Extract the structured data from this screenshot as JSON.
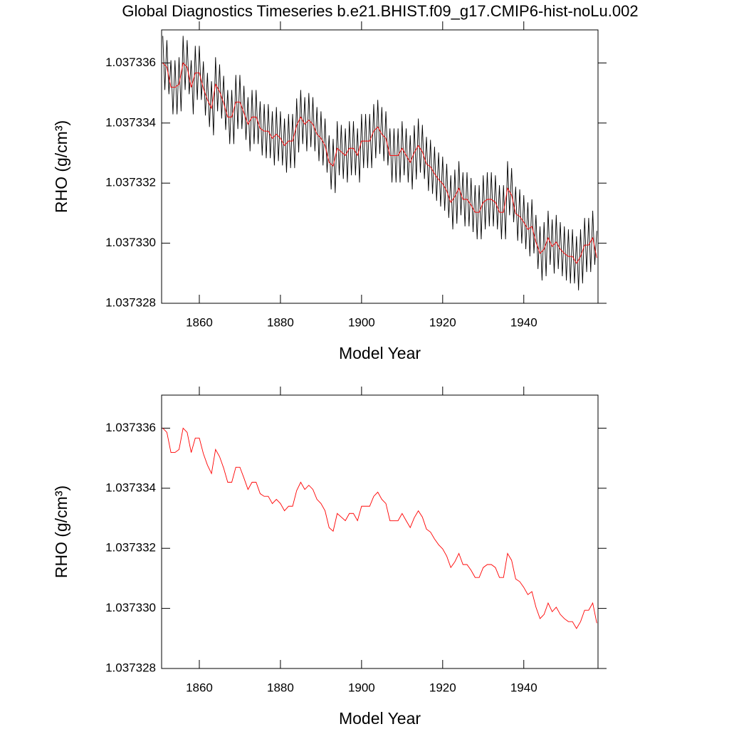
{
  "chart_data": [
    {
      "type": "line",
      "title": "Global Diagnostics Timeseries b.e21.BHIST.f09_g17.CMIP6-hist-noLu.002",
      "xlabel": "Model Year",
      "ylabel": "RHO (g/cm³)",
      "xlim": [
        1850.7,
        1958.3
      ],
      "xticks": [
        1860,
        1880,
        1900,
        1920,
        1940
      ],
      "ylim": [
        1.037328,
        1.0373371
      ],
      "yticks": [
        1.037328,
        {
          "value": 1.03733,
          "label": "1.037330"
        },
        1.037332,
        1.037334,
        1.037336
      ],
      "series": [
        {
          "color": "#000000",
          "x": [
            1851,
            1851.5,
            1852,
            1852.5,
            1853,
            1853.5,
            1854,
            1854.5,
            1855,
            1855.5,
            1856,
            1856.5,
            1857,
            1857.5,
            1858,
            1858.5,
            1859,
            1859.5,
            1860,
            1860.5,
            1861,
            1861.5,
            1862,
            1862.5,
            1863,
            1863.5,
            1864,
            1864.5,
            1865,
            1865.5,
            1866,
            1866.5,
            1867,
            1867.5,
            1868,
            1868.5,
            1869,
            1869.5,
            1870,
            1870.5,
            1871,
            1871.5,
            1872,
            1872.5,
            1873,
            1873.5,
            1874,
            1874.5,
            1875,
            1875.5,
            1876,
            1876.5,
            1877,
            1877.5,
            1878,
            1878.5,
            1879,
            1879.5,
            1880,
            1880.5,
            1881,
            1881.5,
            1882,
            1882.5,
            1883,
            1883.5,
            1884,
            1884.5,
            1885,
            1885.5,
            1886,
            1886.5,
            1887,
            1887.5,
            1888,
            1888.5,
            1889,
            1889.5,
            1890,
            1890.5,
            1891,
            1891.5,
            1892,
            1892.5,
            1893,
            1893.5,
            1894,
            1894.5,
            1895,
            1895.5,
            1896,
            1896.5,
            1897,
            1897.5,
            1898,
            1898.5,
            1899,
            1899.5,
            1900,
            1900.5,
            1901,
            1901.5,
            1902,
            1902.5,
            1903,
            1903.5,
            1904,
            1904.5,
            1905,
            1905.5,
            1906,
            1906.5,
            1907,
            1907.5,
            1908,
            1908.5,
            1909,
            1909.5,
            1910,
            1910.5,
            1911,
            1911.5,
            1912,
            1912.5,
            1913,
            1913.5,
            1914,
            1914.5,
            1915,
            1915.5,
            1916,
            1916.5,
            1917,
            1917.5,
            1918,
            1918.5,
            1919,
            1919.5,
            1920,
            1920.5,
            1921,
            1921.5,
            1922,
            1922.5,
            1923,
            1923.5,
            1924,
            1924.5,
            1925,
            1925.5,
            1926,
            1926.5,
            1927,
            1927.5,
            1928,
            1928.5,
            1929,
            1929.5,
            1930,
            1930.5,
            1931,
            1931.5,
            1932,
            1932.5,
            1933,
            1933.5,
            1934,
            1934.5,
            1935,
            1935.5,
            1936,
            1936.5,
            1937,
            1937.5,
            1938,
            1938.5,
            1939,
            1939.5,
            1940,
            1940.5,
            1941,
            1941.5,
            1942,
            1942.5,
            1943,
            1943.5,
            1944,
            1944.5,
            1945,
            1945.5,
            1946,
            1946.5,
            1947,
            1947.5,
            1948,
            1948.5,
            1949,
            1949.5,
            1950,
            1950.5,
            1951,
            1951.5,
            1952,
            1952.5,
            1953,
            1953.5,
            1954,
            1954.5,
            1955,
            1955.5,
            1956,
            1956.5,
            1957,
            1957.5,
            1958
          ],
          "values": [
            1.0373369,
            1.0373351,
            1.03733676,
            1.03733496,
            1.03733609,
            1.03733429,
            1.03733609,
            1.03733429,
            1.03733619,
            1.03733439,
            1.0373369,
            1.0373351,
            1.03733676,
            1.03733496,
            1.03733609,
            1.03733429,
            1.03733657,
            1.03733477,
            1.03733657,
            1.03733477,
            1.03733605,
            1.03733425,
            1.03733567,
            1.03733387,
            1.03733539,
            1.03733359,
            1.03733619,
            1.03733439,
            1.03733595,
            1.03733415,
            1.03733557,
            1.03733377,
            1.0373351,
            1.0373333,
            1.0373351,
            1.0373333,
            1.0373356,
            1.0373338,
            1.0373356,
            1.0373338,
            1.03733524,
            1.03733344,
            1.03733486,
            1.03733306,
            1.0373351,
            1.0373333,
            1.0373351,
            1.0373333,
            1.03733472,
            1.03733292,
            1.03733463,
            1.03733283,
            1.03733463,
            1.03733283,
            1.03733439,
            1.03733259,
            1.03733453,
            1.03733273,
            1.03733439,
            1.03733259,
            1.03733415,
            1.03733235,
            1.0373343,
            1.0373325,
            1.0373343,
            1.0373325,
            1.03733482,
            1.03733302,
            1.0373351,
            1.0373333,
            1.03733486,
            1.03733306,
            1.037335,
            1.0373332,
            1.03733486,
            1.03733306,
            1.03733453,
            1.03733273,
            1.03733439,
            1.03733259,
            1.03733415,
            1.03733235,
            1.03733359,
            1.03733179,
            1.03733347,
            1.03733167,
            1.03733406,
            1.03733226,
            1.03733394,
            1.03733214,
            1.03733382,
            1.03733202,
            1.03733406,
            1.03733226,
            1.03733406,
            1.03733226,
            1.03733382,
            1.03733202,
            1.0373343,
            1.0373325,
            1.0373343,
            1.0373325,
            1.0373343,
            1.0373325,
            1.03733463,
            1.03733283,
            1.03733477,
            1.03733297,
            1.03733453,
            1.03733273,
            1.03733439,
            1.03733259,
            1.03733382,
            1.03733202,
            1.03733382,
            1.03733202,
            1.03733382,
            1.03733202,
            1.03733406,
            1.03733226,
            1.03733382,
            1.03733202,
            1.03733359,
            1.03733179,
            1.03733392,
            1.03733212,
            1.03733415,
            1.03733235,
            1.03733394,
            1.03733214,
            1.03733354,
            1.03733174,
            1.03733344,
            1.03733164,
            1.03733321,
            1.03733141,
            1.03733302,
            1.03733122,
            1.03733288,
            1.03733108,
            1.03733264,
            1.03733084,
            1.03733226,
            1.03733046,
            1.03733245,
            1.03733065,
            1.03733273,
            1.03733093,
            1.03733236,
            1.03733056,
            1.03733236,
            1.03733056,
            1.03733217,
            1.03733037,
            1.03733193,
            1.03733013,
            1.03733193,
            1.03733013,
            1.03733226,
            1.03733046,
            1.03733236,
            1.03733056,
            1.03733236,
            1.03733056,
            1.03733226,
            1.03733046,
            1.03733193,
            1.03733013,
            1.03733193,
            1.03733013,
            1.03733273,
            1.03733093,
            1.0373325,
            1.0373307,
            1.03733188,
            1.03733008,
            1.03733179,
            1.03732999,
            1.0373316,
            1.0373298,
            1.03733136,
            1.03732956,
            1.03733146,
            1.03732966,
            1.03733094,
            1.03732914,
            1.03733056,
            1.03732876,
            1.0373307,
            1.0373289,
            1.03733108,
            1.03732928,
            1.03733079,
            1.03732899,
            1.03733094,
            1.03732914,
            1.0373307,
            1.0373289,
            1.03733056,
            1.03732876,
            1.03733046,
            1.03732866,
            1.03733046,
            1.03732866,
            1.03733023,
            1.03732843,
            1.03733046,
            1.03732866,
            1.03733084,
            1.03732904,
            1.03733084,
            1.03732904,
            1.03733108,
            1.03732928,
            1.03733041
          ]
        },
        {
          "color": "#ff0000",
          "x": [
            1851,
            1852,
            1853,
            1854,
            1855,
            1856,
            1857,
            1858,
            1859,
            1860,
            1861,
            1862,
            1863,
            1864,
            1865,
            1866,
            1867,
            1868,
            1869,
            1870,
            1871,
            1872,
            1873,
            1874,
            1875,
            1876,
            1877,
            1878,
            1879,
            1880,
            1881,
            1882,
            1883,
            1884,
            1885,
            1886,
            1887,
            1888,
            1889,
            1890,
            1891,
            1892,
            1893,
            1894,
            1895,
            1896,
            1897,
            1898,
            1899,
            1900,
            1901,
            1902,
            1903,
            1904,
            1905,
            1906,
            1907,
            1908,
            1909,
            1910,
            1911,
            1912,
            1913,
            1914,
            1915,
            1916,
            1917,
            1918,
            1919,
            1920,
            1921,
            1922,
            1923,
            1924,
            1925,
            1926,
            1927,
            1928,
            1929,
            1930,
            1931,
            1932,
            1933,
            1934,
            1935,
            1936,
            1937,
            1938,
            1939,
            1940,
            1941,
            1942,
            1943,
            1944,
            1945,
            1946,
            1947,
            1948,
            1949,
            1950,
            1951,
            1952,
            1953,
            1954,
            1955,
            1956,
            1957,
            1958
          ],
          "values": [
            1.037336,
            1.03733586,
            1.03733519,
            1.03733519,
            1.03733529,
            1.037336,
            1.03733586,
            1.03733519,
            1.03733567,
            1.03733567,
            1.03733515,
            1.03733477,
            1.03733449,
            1.03733529,
            1.03733505,
            1.03733467,
            1.0373342,
            1.0373342,
            1.0373347,
            1.0373347,
            1.03733434,
            1.03733396,
            1.0373342,
            1.0373342,
            1.03733382,
            1.03733373,
            1.03733373,
            1.03733349,
            1.03733363,
            1.03733349,
            1.03733325,
            1.0373334,
            1.0373334,
            1.03733392,
            1.0373342,
            1.03733396,
            1.0373341,
            1.03733396,
            1.03733363,
            1.03733349,
            1.03733325,
            1.03733269,
            1.03733257,
            1.03733316,
            1.03733304,
            1.03733292,
            1.03733316,
            1.03733316,
            1.03733292,
            1.0373334,
            1.0373334,
            1.0373334,
            1.03733373,
            1.03733387,
            1.03733363,
            1.03733349,
            1.03733292,
            1.03733292,
            1.03733292,
            1.03733316,
            1.03733292,
            1.03733269,
            1.03733302,
            1.03733325,
            1.03733304,
            1.03733264,
            1.03733254,
            1.03733231,
            1.03733212,
            1.03733198,
            1.03733174,
            1.03733136,
            1.03733155,
            1.03733183,
            1.03733146,
            1.03733146,
            1.03733127,
            1.03733103,
            1.03733103,
            1.03733136,
            1.03733146,
            1.03733146,
            1.03733136,
            1.03733103,
            1.03733103,
            1.03733183,
            1.0373316,
            1.03733098,
            1.03733089,
            1.0373307,
            1.03733046,
            1.03733056,
            1.03733004,
            1.03732966,
            1.0373298,
            1.03733018,
            1.03732989,
            1.03733004,
            1.0373298,
            1.03732966,
            1.03732956,
            1.03732956,
            1.03732933,
            1.03732956,
            1.03732994,
            1.03732994,
            1.03733018,
            1.03732951
          ]
        }
      ]
    },
    {
      "type": "line",
      "xlabel": "Model Year",
      "ylabel": "RHO (g/cm³)",
      "xlim": [
        1850.7,
        1958.3
      ],
      "xticks": [
        1860,
        1880,
        1900,
        1920,
        1940
      ],
      "ylim": [
        1.037328,
        1.0373371
      ],
      "yticks": [
        1.037328,
        {
          "value": 1.03733,
          "label": "1.037330"
        },
        1.037332,
        1.037334,
        1.037336
      ],
      "series": [
        {
          "color": "#ff0000",
          "x": [
            1851,
            1852,
            1853,
            1854,
            1855,
            1856,
            1857,
            1858,
            1859,
            1860,
            1861,
            1862,
            1863,
            1864,
            1865,
            1866,
            1867,
            1868,
            1869,
            1870,
            1871,
            1872,
            1873,
            1874,
            1875,
            1876,
            1877,
            1878,
            1879,
            1880,
            1881,
            1882,
            1883,
            1884,
            1885,
            1886,
            1887,
            1888,
            1889,
            1890,
            1891,
            1892,
            1893,
            1894,
            1895,
            1896,
            1897,
            1898,
            1899,
            1900,
            1901,
            1902,
            1903,
            1904,
            1905,
            1906,
            1907,
            1908,
            1909,
            1910,
            1911,
            1912,
            1913,
            1914,
            1915,
            1916,
            1917,
            1918,
            1919,
            1920,
            1921,
            1922,
            1923,
            1924,
            1925,
            1926,
            1927,
            1928,
            1929,
            1930,
            1931,
            1932,
            1933,
            1934,
            1935,
            1936,
            1937,
            1938,
            1939,
            1940,
            1941,
            1942,
            1943,
            1944,
            1945,
            1946,
            1947,
            1948,
            1949,
            1950,
            1951,
            1952,
            1953,
            1954,
            1955,
            1956,
            1957,
            1958
          ],
          "values": [
            1.037336,
            1.03733586,
            1.03733519,
            1.03733519,
            1.03733529,
            1.037336,
            1.03733586,
            1.03733519,
            1.03733567,
            1.03733567,
            1.03733515,
            1.03733477,
            1.03733449,
            1.03733529,
            1.03733505,
            1.03733467,
            1.0373342,
            1.0373342,
            1.0373347,
            1.0373347,
            1.03733434,
            1.03733396,
            1.0373342,
            1.0373342,
            1.03733382,
            1.03733373,
            1.03733373,
            1.03733349,
            1.03733363,
            1.03733349,
            1.03733325,
            1.0373334,
            1.0373334,
            1.03733392,
            1.0373342,
            1.03733396,
            1.0373341,
            1.03733396,
            1.03733363,
            1.03733349,
            1.03733325,
            1.03733269,
            1.03733257,
            1.03733316,
            1.03733304,
            1.03733292,
            1.03733316,
            1.03733316,
            1.03733292,
            1.0373334,
            1.0373334,
            1.0373334,
            1.03733373,
            1.03733387,
            1.03733363,
            1.03733349,
            1.03733292,
            1.03733292,
            1.03733292,
            1.03733316,
            1.03733292,
            1.03733269,
            1.03733302,
            1.03733325,
            1.03733304,
            1.03733264,
            1.03733254,
            1.03733231,
            1.03733212,
            1.03733198,
            1.03733174,
            1.03733136,
            1.03733155,
            1.03733183,
            1.03733146,
            1.03733146,
            1.03733127,
            1.03733103,
            1.03733103,
            1.03733136,
            1.03733146,
            1.03733146,
            1.03733136,
            1.03733103,
            1.03733103,
            1.03733183,
            1.0373316,
            1.03733098,
            1.03733089,
            1.0373307,
            1.03733046,
            1.03733056,
            1.03733004,
            1.03732966,
            1.0373298,
            1.03733018,
            1.03732989,
            1.03733004,
            1.0373298,
            1.03732966,
            1.03732956,
            1.03732956,
            1.03732933,
            1.03732956,
            1.03732994,
            1.03732994,
            1.03733018,
            1.03732951
          ]
        }
      ]
    }
  ]
}
